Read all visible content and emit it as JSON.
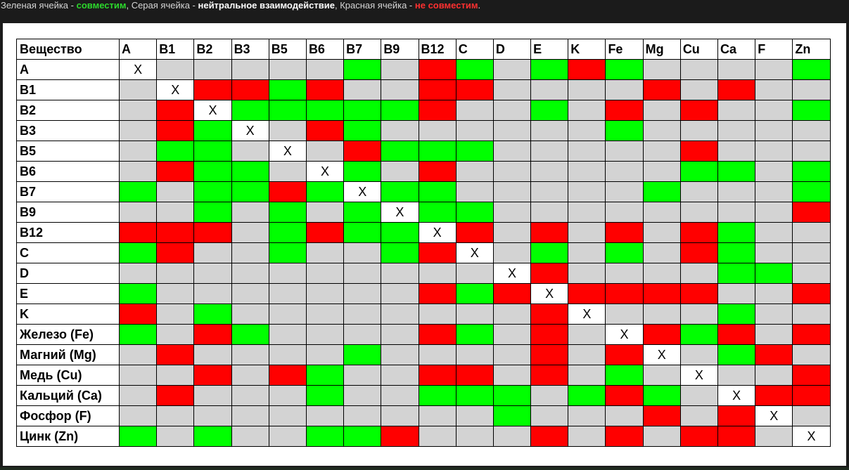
{
  "legend": {
    "green_prefix": "Зеленая ячейка - ",
    "green_word": "совместим",
    "gray_prefix": ", Серая ячейка - ",
    "gray_word": "нейтральное взаимодействие",
    "red_prefix": ", Красная ячейка - ",
    "red_word": "не совместим",
    "suffix": "."
  },
  "colors": {
    "g": "#00ff00",
    "n": "#d3d3d3",
    "r": "#ff0000",
    "x": "#ffffff"
  },
  "table": {
    "corner": "Вещество",
    "columns": [
      "A",
      "B1",
      "B2",
      "B3",
      "B5",
      "B6",
      "B7",
      "B9",
      "B12",
      "C",
      "D",
      "E",
      "K",
      "Fe",
      "Mg",
      "Cu",
      "Ca",
      "F",
      "Zn"
    ],
    "rows": [
      {
        "label": "A",
        "cells": [
          "x",
          "n",
          "n",
          "n",
          "n",
          "n",
          "g",
          "n",
          "r",
          "g",
          "n",
          "g",
          "r",
          "g",
          "n",
          "n",
          "n",
          "n",
          "g"
        ]
      },
      {
        "label": "B1",
        "cells": [
          "n",
          "x",
          "r",
          "r",
          "g",
          "r",
          "n",
          "n",
          "r",
          "r",
          "n",
          "n",
          "n",
          "n",
          "r",
          "n",
          "r",
          "n",
          "n"
        ]
      },
      {
        "label": "B2",
        "cells": [
          "n",
          "r",
          "x",
          "g",
          "g",
          "g",
          "g",
          "g",
          "r",
          "n",
          "n",
          "g",
          "n",
          "r",
          "n",
          "r",
          "n",
          "n",
          "g"
        ]
      },
      {
        "label": "B3",
        "cells": [
          "n",
          "r",
          "g",
          "x",
          "n",
          "r",
          "g",
          "n",
          "n",
          "n",
          "n",
          "n",
          "n",
          "g",
          "n",
          "n",
          "n",
          "n",
          "n"
        ]
      },
      {
        "label": "B5",
        "cells": [
          "n",
          "g",
          "g",
          "n",
          "x",
          "n",
          "r",
          "g",
          "g",
          "g",
          "n",
          "n",
          "n",
          "n",
          "n",
          "r",
          "n",
          "n",
          "n"
        ]
      },
      {
        "label": "B6",
        "cells": [
          "n",
          "r",
          "g",
          "g",
          "n",
          "x",
          "g",
          "n",
          "r",
          "n",
          "n",
          "n",
          "n",
          "n",
          "n",
          "g",
          "g",
          "n",
          "g"
        ]
      },
      {
        "label": "B7",
        "cells": [
          "g",
          "n",
          "g",
          "g",
          "r",
          "g",
          "x",
          "g",
          "g",
          "n",
          "n",
          "n",
          "n",
          "n",
          "g",
          "n",
          "n",
          "n",
          "g"
        ]
      },
      {
        "label": "B9",
        "cells": [
          "n",
          "n",
          "g",
          "n",
          "g",
          "n",
          "g",
          "x",
          "g",
          "g",
          "n",
          "n",
          "n",
          "n",
          "n",
          "n",
          "n",
          "n",
          "r"
        ]
      },
      {
        "label": "B12",
        "cells": [
          "r",
          "r",
          "r",
          "n",
          "g",
          "r",
          "g",
          "g",
          "x",
          "r",
          "n",
          "r",
          "n",
          "r",
          "n",
          "r",
          "g",
          "n",
          "n"
        ]
      },
      {
        "label": "C",
        "cells": [
          "g",
          "r",
          "n",
          "n",
          "g",
          "n",
          "n",
          "g",
          "r",
          "x",
          "n",
          "g",
          "n",
          "g",
          "n",
          "r",
          "g",
          "n",
          "n"
        ]
      },
      {
        "label": "D",
        "cells": [
          "n",
          "n",
          "n",
          "n",
          "n",
          "n",
          "n",
          "n",
          "n",
          "n",
          "x",
          "r",
          "n",
          "n",
          "n",
          "n",
          "g",
          "g",
          "n"
        ]
      },
      {
        "label": "E",
        "cells": [
          "g",
          "n",
          "n",
          "n",
          "n",
          "n",
          "n",
          "n",
          "r",
          "g",
          "r",
          "x",
          "r",
          "r",
          "r",
          "r",
          "n",
          "n",
          "r"
        ]
      },
      {
        "label": "K",
        "cells": [
          "r",
          "n",
          "g",
          "n",
          "n",
          "n",
          "n",
          "n",
          "n",
          "n",
          "n",
          "r",
          "x",
          "n",
          "n",
          "n",
          "g",
          "n",
          "n"
        ]
      },
      {
        "label": "Железо (Fe)",
        "cells": [
          "g",
          "n",
          "r",
          "g",
          "n",
          "n",
          "n",
          "n",
          "r",
          "g",
          "n",
          "r",
          "n",
          "x",
          "r",
          "g",
          "r",
          "n",
          "r"
        ]
      },
      {
        "label": "Магний (Mg)",
        "cells": [
          "n",
          "r",
          "n",
          "n",
          "n",
          "n",
          "g",
          "n",
          "n",
          "n",
          "n",
          "r",
          "n",
          "r",
          "x",
          "n",
          "g",
          "r",
          "n"
        ]
      },
      {
        "label": "Медь (Cu)",
        "cells": [
          "n",
          "n",
          "r",
          "n",
          "r",
          "g",
          "n",
          "n",
          "r",
          "r",
          "n",
          "r",
          "n",
          "g",
          "n",
          "x",
          "n",
          "n",
          "r"
        ]
      },
      {
        "label": "Кальций (Ca)",
        "cells": [
          "n",
          "r",
          "n",
          "n",
          "n",
          "g",
          "n",
          "n",
          "g",
          "g",
          "g",
          "n",
          "g",
          "r",
          "g",
          "n",
          "x",
          "r",
          "r"
        ]
      },
      {
        "label": "Фосфор (F)",
        "cells": [
          "n",
          "n",
          "n",
          "n",
          "n",
          "n",
          "n",
          "n",
          "n",
          "n",
          "g",
          "n",
          "n",
          "n",
          "r",
          "n",
          "r",
          "x",
          "n"
        ]
      },
      {
        "label": "Цинк (Zn)",
        "cells": [
          "g",
          "n",
          "g",
          "n",
          "n",
          "g",
          "g",
          "r",
          "n",
          "n",
          "n",
          "r",
          "n",
          "r",
          "n",
          "r",
          "r",
          "n",
          "x"
        ]
      }
    ],
    "diag_mark": "X"
  }
}
